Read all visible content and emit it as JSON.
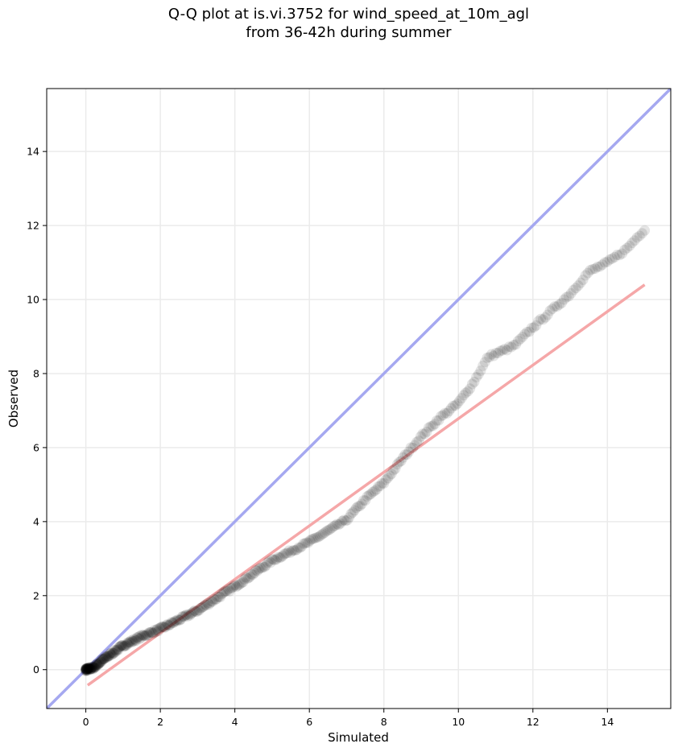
{
  "chart_data": {
    "type": "scatter",
    "title": [
      "Q-Q plot at is.vi.3752 for wind_speed_at_10m_agl",
      "from 36-42h during summer"
    ],
    "xlabel": "Simulated",
    "ylabel": "Observed",
    "xlim": [
      -1.05,
      15.7
    ],
    "ylim": [
      -1.05,
      15.7
    ],
    "xticks": [
      0,
      2,
      4,
      6,
      8,
      10,
      12,
      14
    ],
    "yticks": [
      0,
      2,
      4,
      6,
      8,
      10,
      12,
      14
    ],
    "grid": true,
    "identity_line": {
      "from": [
        -1.05,
        -1.05
      ],
      "to": [
        15.7,
        15.7
      ],
      "color": "#a5a8f0"
    },
    "fit_line": {
      "from": [
        0.05,
        -0.42
      ],
      "to": [
        15.0,
        10.4
      ],
      "color": "#f5a7a8"
    },
    "quantile_knots": [
      [
        0.0,
        0.0
      ],
      [
        0.2,
        0.05
      ],
      [
        0.5,
        0.3
      ],
      [
        1.0,
        0.65
      ],
      [
        1.5,
        0.9
      ],
      [
        2.0,
        1.1
      ],
      [
        3.0,
        1.6
      ],
      [
        4.0,
        2.25
      ],
      [
        5.0,
        2.95
      ],
      [
        6.0,
        3.45
      ],
      [
        7.0,
        4.05
      ],
      [
        7.5,
        4.6
      ],
      [
        8.0,
        5.05
      ],
      [
        8.5,
        5.7
      ],
      [
        9.0,
        6.3
      ],
      [
        9.5,
        6.8
      ],
      [
        10.0,
        7.2
      ],
      [
        10.4,
        7.75
      ],
      [
        10.8,
        8.45
      ],
      [
        11.5,
        8.75
      ],
      [
        12.0,
        9.25
      ],
      [
        12.5,
        9.7
      ],
      [
        13.0,
        10.15
      ],
      [
        13.5,
        10.75
      ],
      [
        14.0,
        11.0
      ],
      [
        14.5,
        11.35
      ],
      [
        15.0,
        11.9
      ]
    ],
    "point_color": "#000000"
  }
}
